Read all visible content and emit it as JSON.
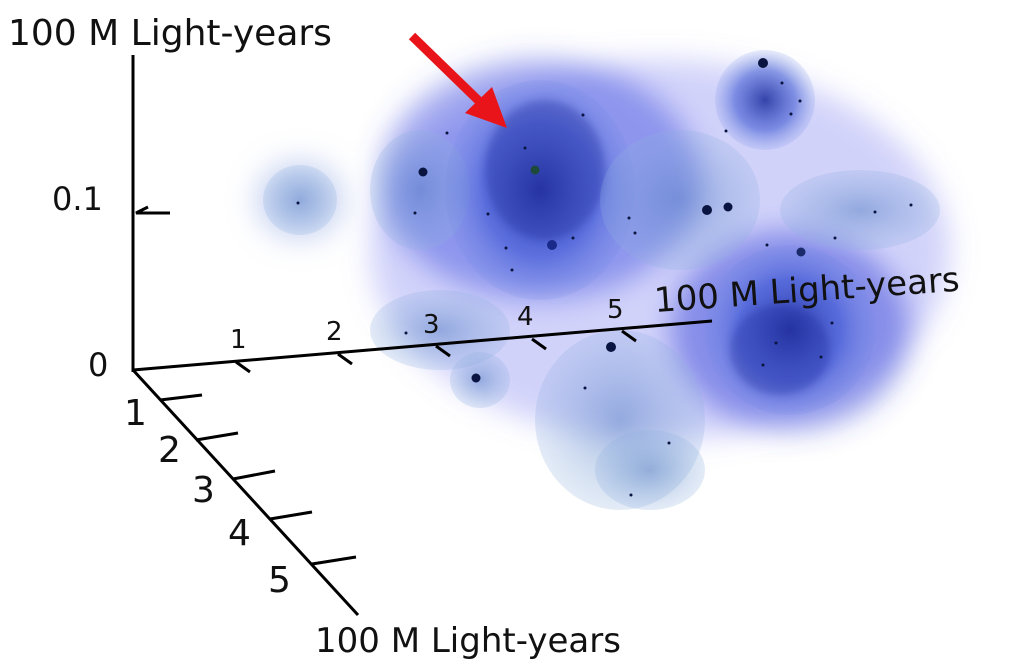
{
  "axes": {
    "vertical": {
      "label": "100 M Light-years",
      "ticks": [
        0,
        0.1
      ]
    },
    "horizontal": {
      "label": "100 M Light-years",
      "ticks": [
        1,
        2,
        3,
        4,
        5
      ]
    },
    "depth": {
      "label": "100 M Light-years",
      "ticks": [
        1,
        2,
        3,
        4,
        5
      ]
    }
  }
}
